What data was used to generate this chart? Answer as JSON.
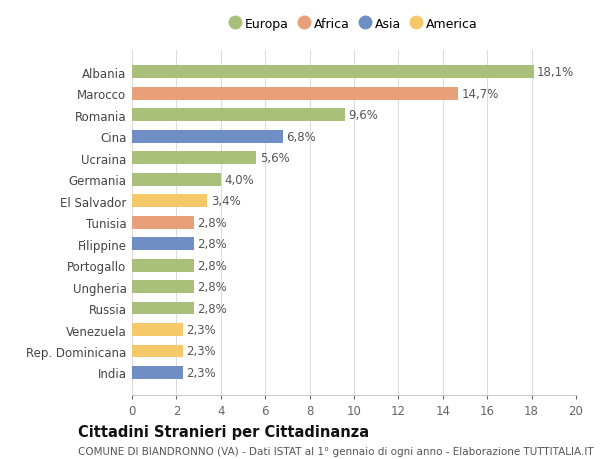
{
  "categories": [
    "India",
    "Rep. Dominicana",
    "Venezuela",
    "Russia",
    "Ungheria",
    "Portogallo",
    "Filippine",
    "Tunisia",
    "El Salvador",
    "Germania",
    "Ucraina",
    "Cina",
    "Romania",
    "Marocco",
    "Albania"
  ],
  "values": [
    2.3,
    2.3,
    2.3,
    2.8,
    2.8,
    2.8,
    2.8,
    2.8,
    3.4,
    4.0,
    5.6,
    6.8,
    9.6,
    14.7,
    18.1
  ],
  "colors": [
    "#6f8fc4",
    "#f5c96a",
    "#f5c96a",
    "#a8c07a",
    "#a8c07a",
    "#a8c07a",
    "#6f8fc4",
    "#e8a07a",
    "#f5c96a",
    "#a8c07a",
    "#a8c07a",
    "#6f8fc4",
    "#a8c07a",
    "#e8a07a",
    "#a8c07a"
  ],
  "legend_labels": [
    "Europa",
    "Africa",
    "Asia",
    "America"
  ],
  "legend_colors": [
    "#a8c07a",
    "#e8a07a",
    "#6f8fc4",
    "#f5c96a"
  ],
  "xlim": [
    0,
    20
  ],
  "xticks": [
    0,
    2,
    4,
    6,
    8,
    10,
    12,
    14,
    16,
    18,
    20
  ],
  "title": "Cittadini Stranieri per Cittadinanza",
  "subtitle": "COMUNE DI BIANDRONNO (VA) - Dati ISTAT al 1° gennaio di ogni anno - Elaborazione TUTTITALIA.IT",
  "bg_color": "#ffffff",
  "grid_color": "#dddddd",
  "label_fontsize": 8.5,
  "value_fontsize": 8.5,
  "title_fontsize": 10.5,
  "subtitle_fontsize": 7.5
}
